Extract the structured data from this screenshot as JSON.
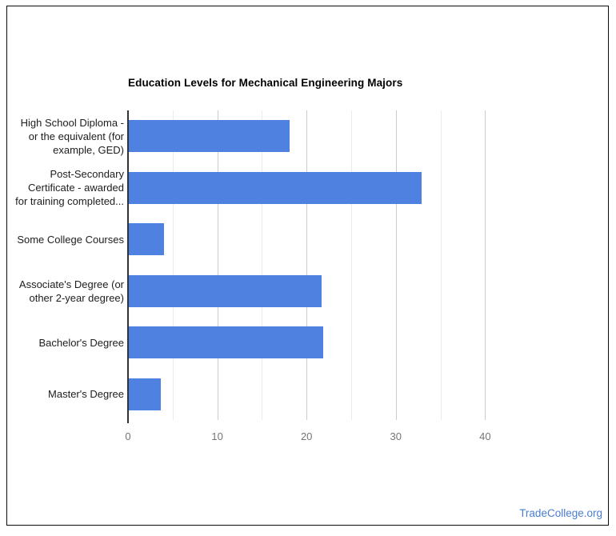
{
  "window": {
    "background_color": "#ffffff",
    "card_border_color": "#0b0b0b"
  },
  "chart_data": {
    "type": "bar",
    "orientation": "horizontal",
    "title": "Education Levels for Mechanical Engineering Majors",
    "categories": [
      "High School Diploma -\nor the equivalent (for\nexample, GED)",
      "Post-Secondary\nCertificate - awarded\nfor training completed...",
      "Some College Courses",
      "Associate's Degree (or\nother 2-year degree)",
      "Bachelor's Degree",
      "Master's Degree"
    ],
    "values": [
      18,
      32.8,
      3.9,
      21.6,
      21.8,
      3.6
    ],
    "xlabel": "",
    "ylabel": "",
    "xlim": [
      0,
      46.6
    ],
    "x_major_ticks": [
      0,
      10,
      20,
      30,
      40
    ],
    "x_minor_ticks": [
      5,
      15,
      25,
      35
    ],
    "grid": true,
    "legend": "none",
    "bar_color": "#4f81e1",
    "axis_line_color": "#333333",
    "major_grid_color": "#cccccc",
    "minor_grid_color": "#ebebeb",
    "tick_label_color": "#757575",
    "category_label_color": "#1d1d1d"
  },
  "footer": {
    "link_text": "TradeCollege.org",
    "link_color": "#4a7dd2"
  }
}
